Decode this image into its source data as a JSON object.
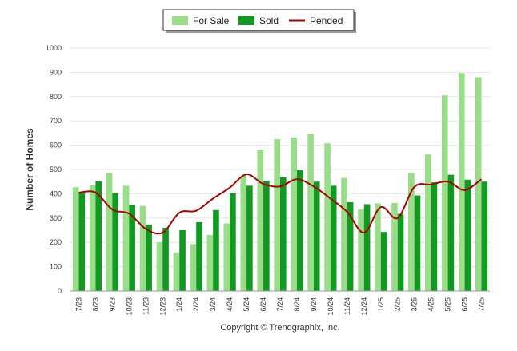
{
  "chart_data": {
    "type": "bar",
    "ylabel": "Number of Homes",
    "xlabel": "",
    "title": "",
    "ylim": [
      0,
      1000
    ],
    "yticks": [
      0,
      100,
      200,
      300,
      400,
      500,
      600,
      700,
      800,
      900,
      1000
    ],
    "grid": true,
    "legend_position": "top-center",
    "categories": [
      "7/23",
      "8/23",
      "9/23",
      "10/23",
      "11/23",
      "12/23",
      "1/24",
      "2/24",
      "3/24",
      "4/24",
      "5/24",
      "6/24",
      "7/24",
      "8/24",
      "9/24",
      "10/24",
      "11/24",
      "12/24",
      "1/25",
      "2/25",
      "3/25",
      "4/25",
      "5/25",
      "6/25",
      "7/25"
    ],
    "series": [
      {
        "name": "For Sale",
        "kind": "bar",
        "color": "#99dd88",
        "values": [
          427,
          435,
          487,
          433,
          350,
          200,
          157,
          193,
          230,
          278,
          475,
          582,
          625,
          632,
          647,
          608,
          465,
          335,
          360,
          362,
          487,
          562,
          805,
          897,
          880
        ]
      },
      {
        "name": "Sold",
        "kind": "bar",
        "color": "#119922",
        "values": [
          402,
          452,
          403,
          355,
          272,
          260,
          250,
          283,
          333,
          402,
          433,
          453,
          467,
          497,
          450,
          433,
          365,
          357,
          243,
          317,
          393,
          447,
          478,
          458,
          450
        ]
      },
      {
        "name": "Pended",
        "kind": "line",
        "color": "#aa0000",
        "values": [
          405,
          405,
          335,
          318,
          255,
          240,
          322,
          330,
          380,
          425,
          480,
          440,
          430,
          460,
          430,
          380,
          325,
          240,
          345,
          300,
          428,
          438,
          450,
          415,
          460
        ]
      }
    ]
  },
  "footer": {
    "copyright": "Copyright © Trendgraphix, Inc."
  }
}
